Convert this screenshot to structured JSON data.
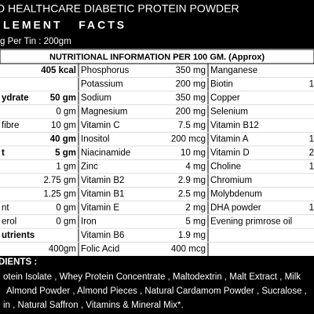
{
  "header": {
    "title": "D HEALTHCARE DIABETIC PROTEIN POWDER",
    "subtitle": "LEMENT   FACTS",
    "net": "g Per Tin : 200gm"
  },
  "table": {
    "heading": "NUTRITIONAL INFORMATION PER 100 GM. (Approx)",
    "rows": [
      {
        "v1": "405 kcal",
        "n2": "Phosphorus",
        "v2": "350 mg",
        "n3": "Manganese",
        "bold": true
      },
      {
        "n2": "Potassium",
        "v2": "200 mg",
        "n3": "Biotin",
        "v3": "1"
      },
      {
        "n1": "ydrate",
        "v1": "50 gm",
        "n2": "Sodium",
        "v2": "350 mg",
        "n3": "Copper",
        "bold": true
      },
      {
        "v1": "0 gm",
        "n2": "Magnesium",
        "v2": "200 mg",
        "n3": "Selenium"
      },
      {
        "n1": "fibre",
        "v1": "10 gm",
        "n2": "Vitamin C",
        "v2": "7.5 mg",
        "n3": "Vitamin B12"
      },
      {
        "v1": "40 gm",
        "n2": "Inositol",
        "v2": "200 mcg",
        "n3": "Vitamin A",
        "v3": "1",
        "bold": true
      },
      {
        "n1": "t",
        "v1": "5 gm",
        "n2": "Niacinamide",
        "v2": "10 mg",
        "n3": "Vitamin D",
        "v3": "2",
        "bold": true
      },
      {
        "v1": "1 gm",
        "n2": "Zinc",
        "v2": "4 mg",
        "n3": "Choline",
        "v3": "1"
      },
      {
        "v1": "2.75 gm",
        "n2": "Vitamin B2",
        "v2": "2.9 mg",
        "n3": "Chromium"
      },
      {
        "v1": "1.25 gm",
        "n2": "Vitamin B1",
        "v2": "2.5 mg",
        "n3": "Molybdenum"
      },
      {
        "n1": "nt",
        "v1": "0 gm",
        "n2": "Vitamin E",
        "v2": "2 mg",
        "n3": "DHA powder",
        "v3": "1"
      },
      {
        "n1": "erol",
        "v1": "0 gm",
        "n2": "Iron",
        "v2": "5 mg",
        "n3": "Evening primrose oil"
      },
      {
        "n1": "utrients",
        "n2": "Vitamin B6",
        "v2": "1.9 mg",
        "bold": true
      },
      {
        "v1": "400gm",
        "n2": "Folic Acid",
        "v2": "400 mcg"
      }
    ]
  },
  "ingredients": {
    "heading": "DIENTS :",
    "lines": [
      "otein Isolate , Whey Protein Concentrate , Maltodextrin , Malt Extract , Milk",
      "Almond Powder , Almond Pieces , Natural Cardamom Powder , Sucralose ,",
      "in , Natural Saffron , Vitamins & Mineral Mix*."
    ]
  }
}
